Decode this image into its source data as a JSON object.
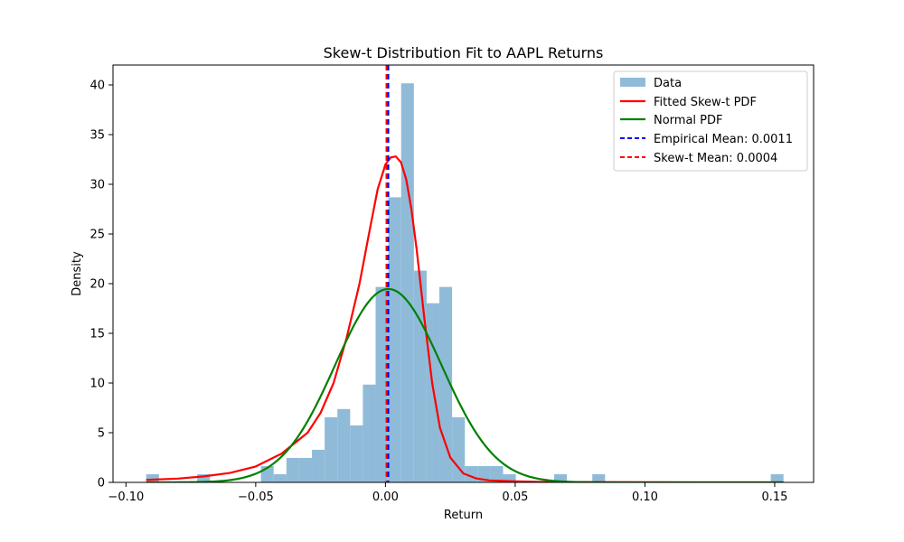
{
  "chart_data": {
    "type": "histogram",
    "title": "Skew-t Distribution Fit to AAPL Returns",
    "xlabel": "Return",
    "ylabel": "Density",
    "xlim": [
      -0.105,
      0.165
    ],
    "ylim": [
      0,
      42
    ],
    "xticks": [
      -0.1,
      -0.05,
      0.0,
      0.05,
      0.1,
      0.15
    ],
    "xtick_labels": [
      "−0.10",
      "−0.05",
      "0.00",
      "0.05",
      "0.10",
      "0.15"
    ],
    "yticks": [
      0,
      5,
      10,
      15,
      20,
      25,
      30,
      35,
      40
    ],
    "ytick_labels": [
      "0",
      "5",
      "10",
      "15",
      "20",
      "25",
      "30",
      "35",
      "40"
    ],
    "grid": false,
    "legend_position": "top-right",
    "histogram": {
      "name": "Data",
      "color": "#8fbbd9",
      "bin_start": -0.0922,
      "bin_width": 0.004912,
      "values": [
        0.82,
        0,
        0,
        0,
        0.82,
        0,
        0,
        0,
        0,
        1.64,
        0.82,
        2.46,
        2.46,
        3.28,
        6.56,
        7.38,
        5.74,
        9.84,
        19.67,
        28.69,
        40.16,
        21.31,
        18.03,
        19.67,
        6.56,
        1.64,
        1.64,
        1.64,
        0.82,
        0,
        0,
        0,
        0.82,
        0,
        0,
        0.82,
        0,
        0,
        0,
        0,
        0,
        0,
        0,
        0,
        0,
        0,
        0,
        0,
        0,
        0.82
      ]
    },
    "series": [
      {
        "name": "Fitted Skew-t PDF",
        "color": "#ff0000",
        "x": [
          -0.0922,
          -0.08,
          -0.07,
          -0.06,
          -0.05,
          -0.04,
          -0.03,
          -0.025,
          -0.02,
          -0.015,
          -0.01,
          -0.006,
          -0.003,
          0.0,
          0.002,
          0.004,
          0.006,
          0.008,
          0.01,
          0.012,
          0.015,
          0.018,
          0.021,
          0.025,
          0.03,
          0.035,
          0.04,
          0.05,
          0.06,
          0.08,
          0.1,
          0.13,
          0.153
        ],
        "y": [
          0.25,
          0.38,
          0.6,
          0.95,
          1.6,
          2.9,
          5.0,
          7.0,
          10.0,
          14.5,
          20.0,
          25.5,
          29.5,
          32.0,
          32.7,
          32.8,
          32.2,
          30.5,
          27.5,
          23.5,
          16.5,
          10.0,
          5.5,
          2.5,
          0.9,
          0.4,
          0.2,
          0.1,
          0.05,
          0.02,
          0.01,
          0.005,
          0.003
        ]
      },
      {
        "name": "Normal PDF",
        "color": "#008000",
        "mean": 0.0011,
        "std": 0.0205
      }
    ],
    "vlines": [
      {
        "name": "Empirical Mean: 0.0011",
        "x": 0.0011,
        "color": "#0000ff",
        "style": "dashed"
      },
      {
        "name": "Skew-t Mean: 0.0004",
        "x": 0.0004,
        "color": "#ff0000",
        "style": "dashed"
      }
    ]
  }
}
